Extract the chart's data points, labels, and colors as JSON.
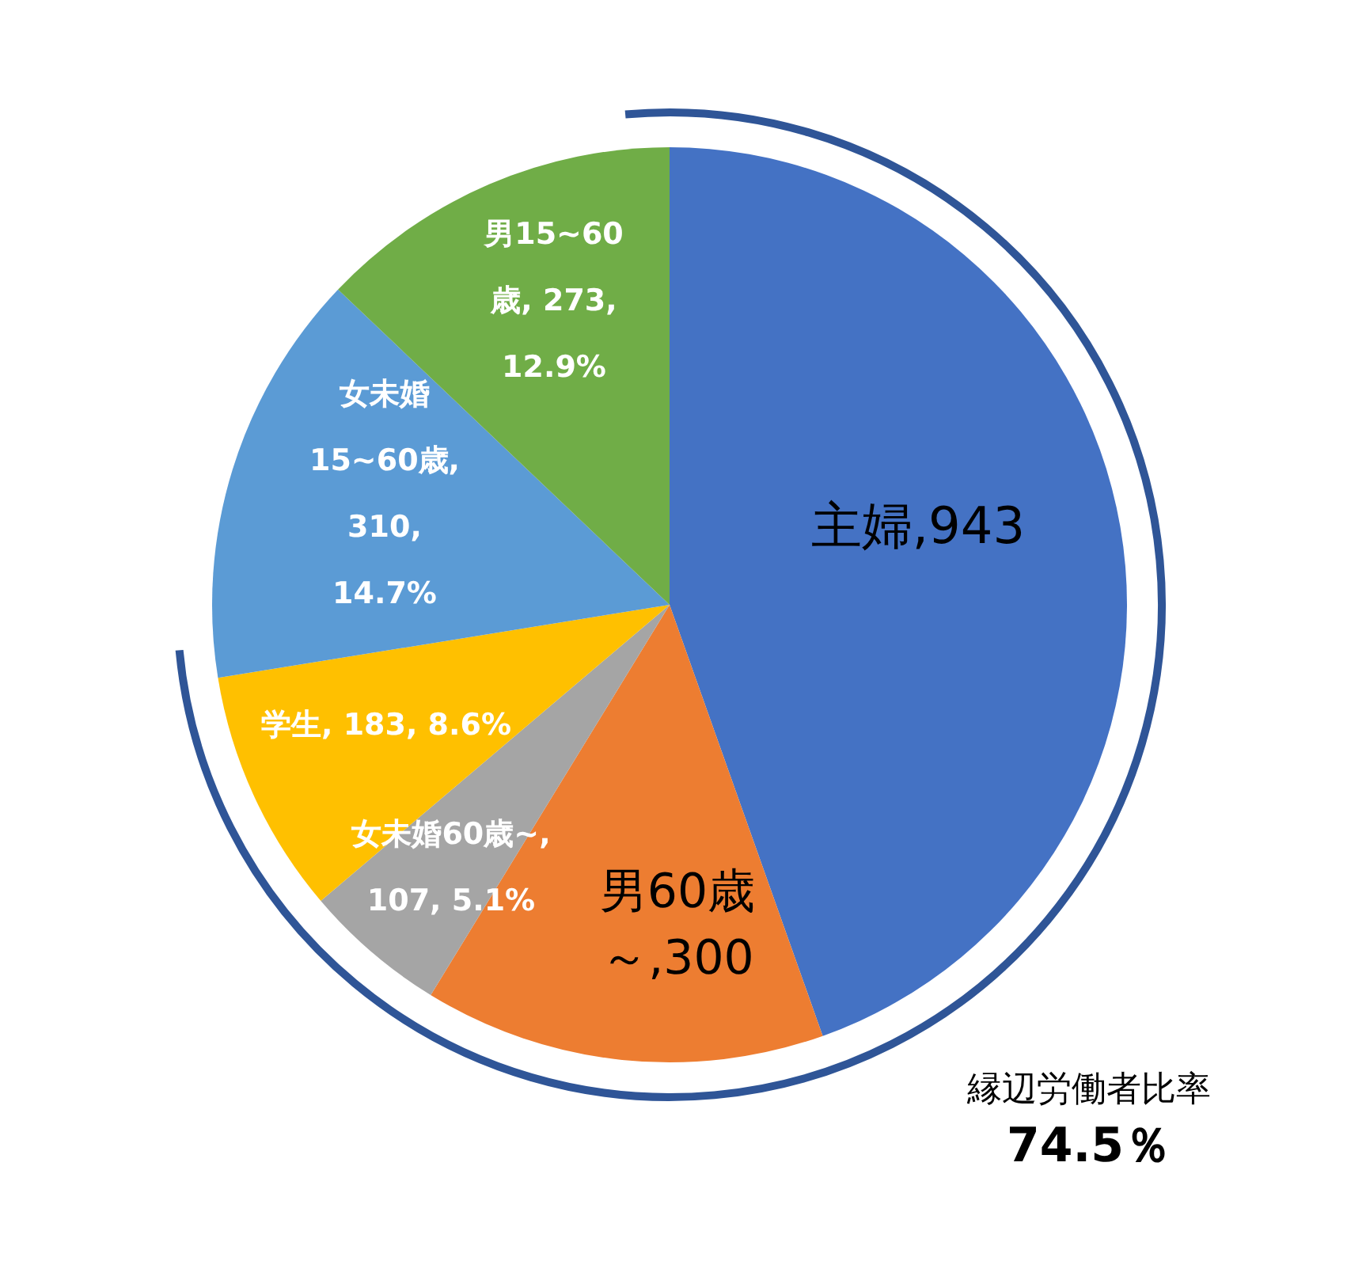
{
  "chart_data": {
    "type": "pie",
    "categories": [
      "主婦",
      "男60歳～",
      "女未婚60歳~",
      "学生",
      "女未婚15~60歳",
      "男15~60歳"
    ],
    "values": [
      943,
      300,
      107,
      183,
      310,
      273
    ],
    "value_labels": [
      ",943",
      ",300",
      ", 107, 5.1%",
      ", 183, 8.6%",
      ", 310, 14.7%",
      ", 273, 12.9%"
    ],
    "colors": [
      "#4472c4",
      "#ed7d31",
      "#a5a5a5",
      "#ffc000",
      "#5b9bd5",
      "#70ad47"
    ],
    "annotations": [
      "縁辺労働者比率",
      "74.5％"
    ]
  }
}
